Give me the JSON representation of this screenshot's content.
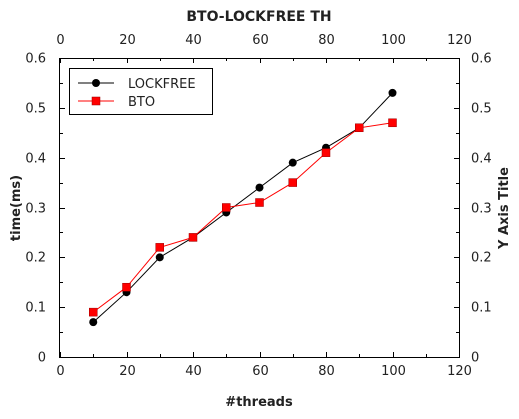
{
  "chart_data": {
    "type": "line",
    "title": "BTO-LOCKFREE TH",
    "xlabel": "#threads",
    "ylabel": "time(ms)",
    "ylabel_right": "Y Axis Title",
    "xlim": [
      0,
      120
    ],
    "ylim": [
      0,
      0.6
    ],
    "x_ticks": [
      "0",
      "20",
      "40",
      "60",
      "80",
      "100",
      "120"
    ],
    "y_ticks": [
      "0",
      "0.1",
      "0.2",
      "0.3",
      "0.4",
      "0.5",
      "0.6"
    ],
    "x": [
      10,
      20,
      30,
      40,
      50,
      60,
      70,
      80,
      90,
      100
    ],
    "series": [
      {
        "name": "LOCKFREE",
        "color": "#000000",
        "marker": "circle",
        "values": [
          0.07,
          0.13,
          0.2,
          0.24,
          0.29,
          0.34,
          0.39,
          0.42,
          0.46,
          0.53
        ]
      },
      {
        "name": "BTO",
        "color": "#ff0000",
        "marker": "square",
        "values": [
          0.09,
          0.14,
          0.22,
          0.24,
          0.3,
          0.31,
          0.35,
          0.41,
          0.46,
          0.47
        ]
      }
    ],
    "grid": false,
    "legend_position": "top-left"
  }
}
